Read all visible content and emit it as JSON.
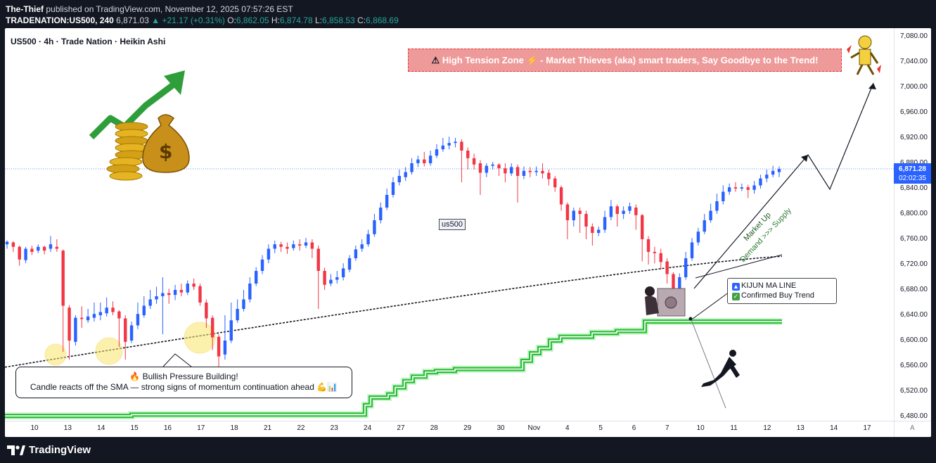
{
  "header": {
    "publisher": "The-Thief",
    "published_text": "published on TradingView.com, November 12, 2025 07:57:26 EST",
    "symbol": "TRADENATION:US500, 240",
    "last": "6,871.03",
    "change": "▲ +21.17 (+0.31%)",
    "o_label": "O:",
    "o_value": "6,862.05",
    "h_label": "H:",
    "h_value": "6,874.78",
    "l_label": "L:",
    "l_value": "6,858.53",
    "c_label": "C:",
    "c_value": "6,868.69"
  },
  "chart_title": "US500 · 4h · Trade Nation · Heikin Ashi",
  "banner": {
    "icon": "⚠",
    "text": "High Tension Zone ⚡ - Market Thieves (aka) smart traders, Say Goodbye to the Trend!"
  },
  "labels": {
    "us500": "us500",
    "kijun_line": "KIJUN MA LINE",
    "confirmed": "Confirmed Buy Trend",
    "market_up": "Market Up",
    "demand_supply": "Demand >>> Supply",
    "bull_line1": "🔥 Bullish Pressure Building!",
    "bull_line2": "Candle reacts off the SMA — strong signs of momentum continuation ahead 💪📊"
  },
  "price_tag": {
    "price": "6,871.28",
    "countdown": "02:02:35"
  },
  "auto_label": "A",
  "footer_logo": "TradingView",
  "icons": [
    "green-arrow-icon",
    "money-bag-icon",
    "gold-coins-icon",
    "thief-with-safe-icon",
    "climber-silhouette-icon",
    "robot-thief-icon"
  ],
  "colors": {
    "up": "#2962ff",
    "down": "#f23645",
    "kijun": "#2ebd3a",
    "sma": "#131722",
    "banner_bg": "#ef9a9a",
    "price_tag": "#2962ff"
  },
  "chart_data": {
    "type": "candlestick",
    "title": "US500 · 4h · Trade Nation · Heikin Ashi",
    "y_ticks": [
      "7,080.00",
      "7,040.00",
      "7,000.00",
      "6,960.00",
      "6,920.00",
      "6,880.00",
      "6,840.00",
      "6,800.00",
      "6,760.00",
      "6,720.00",
      "6,680.00",
      "6,640.00",
      "6,600.00",
      "6,560.00",
      "6,520.00",
      "6,480.00"
    ],
    "ylim": [
      6460,
      7100
    ],
    "x_ticks": [
      "10",
      "13",
      "14",
      "15",
      "16",
      "17",
      "18",
      "21",
      "22",
      "23",
      "24",
      "27",
      "28",
      "29",
      "30",
      "Nov",
      "4",
      "5",
      "6",
      "7",
      "10",
      "11",
      "12",
      "13",
      "14",
      "17"
    ],
    "last_price": 6871.28,
    "candles": [
      [
        6752,
        6756,
        6745,
        6758
      ],
      [
        6755,
        6748,
        6740,
        6757
      ],
      [
        6748,
        6728,
        6718,
        6750
      ],
      [
        6727,
        6745,
        6722,
        6748
      ],
      [
        6745,
        6740,
        6735,
        6750
      ],
      [
        6742,
        6748,
        6738,
        6752
      ],
      [
        6748,
        6742,
        6736,
        6750
      ],
      [
        6745,
        6752,
        6740,
        6765
      ],
      [
        6748,
        6745,
        6740,
        6760
      ],
      [
        6742,
        6655,
        6582,
        6744
      ],
      [
        6652,
        6600,
        6570,
        6656
      ],
      [
        6598,
        6636,
        6592,
        6640
      ],
      [
        6636,
        6634,
        6620,
        6654
      ],
      [
        6632,
        6638,
        6628,
        6650
      ],
      [
        6636,
        6642,
        6630,
        6660
      ],
      [
        6640,
        6645,
        6632,
        6660
      ],
      [
        6643,
        6652,
        6638,
        6668
      ],
      [
        6652,
        6645,
        6640,
        6662
      ],
      [
        6646,
        6635,
        6590,
        6648
      ],
      [
        6635,
        6598,
        6570,
        6640
      ],
      [
        6600,
        6624,
        6596,
        6630
      ],
      [
        6624,
        6642,
        6618,
        6660
      ],
      [
        6640,
        6655,
        6636,
        6670
      ],
      [
        6655,
        6665,
        6650,
        6680
      ],
      [
        6665,
        6670,
        6658,
        6685
      ],
      [
        6670,
        6675,
        6610,
        6700
      ],
      [
        6675,
        6672,
        6658,
        6682
      ],
      [
        6672,
        6680,
        6664,
        6688
      ],
      [
        6680,
        6676,
        6670,
        6690
      ],
      [
        6676,
        6690,
        6672,
        6695
      ],
      [
        6690,
        6685,
        6680,
        6698
      ],
      [
        6686,
        6660,
        6655,
        6690
      ],
      [
        6660,
        6635,
        6620,
        6665
      ],
      [
        6636,
        6605,
        6585,
        6640
      ],
      [
        6606,
        6575,
        6555,
        6610
      ],
      [
        6578,
        6600,
        6570,
        6640
      ],
      [
        6600,
        6632,
        6596,
        6660
      ],
      [
        6632,
        6650,
        6628,
        6665
      ],
      [
        6650,
        6665,
        6646,
        6680
      ],
      [
        6665,
        6690,
        6660,
        6700
      ],
      [
        6690,
        6710,
        6686,
        6716
      ],
      [
        6710,
        6728,
        6705,
        6735
      ],
      [
        6728,
        6745,
        6722,
        6752
      ],
      [
        6745,
        6752,
        6738,
        6758
      ],
      [
        6752,
        6748,
        6740,
        6756
      ],
      [
        6748,
        6745,
        6737,
        6755
      ],
      [
        6746,
        6752,
        6742,
        6758
      ],
      [
        6752,
        6750,
        6742,
        6760
      ],
      [
        6750,
        6755,
        6746,
        6762
      ],
      [
        6755,
        6745,
        6730,
        6760
      ],
      [
        6745,
        6710,
        6650,
        6750
      ],
      [
        6710,
        6688,
        6680,
        6715
      ],
      [
        6690,
        6696,
        6686,
        6705
      ],
      [
        6696,
        6700,
        6690,
        6710
      ],
      [
        6700,
        6714,
        6695,
        6722
      ],
      [
        6712,
        6730,
        6708,
        6735
      ],
      [
        6730,
        6744,
        6726,
        6750
      ],
      [
        6745,
        6752,
        6740,
        6760
      ],
      [
        6752,
        6768,
        6748,
        6775
      ],
      [
        6768,
        6790,
        6764,
        6800
      ],
      [
        6790,
        6810,
        6785,
        6818
      ],
      [
        6810,
        6830,
        6806,
        6840
      ],
      [
        6830,
        6850,
        6826,
        6858
      ],
      [
        6850,
        6860,
        6845,
        6870
      ],
      [
        6858,
        6866,
        6852,
        6874
      ],
      [
        6866,
        6880,
        6862,
        6888
      ],
      [
        6880,
        6886,
        6874,
        6892
      ],
      [
        6886,
        6880,
        6875,
        6898
      ],
      [
        6880,
        6892,
        6876,
        6900
      ],
      [
        6892,
        6902,
        6888,
        6910
      ],
      [
        6902,
        6908,
        6898,
        6920
      ],
      [
        6908,
        6912,
        6902,
        6922
      ],
      [
        6912,
        6914,
        6905,
        6920
      ],
      [
        6914,
        6900,
        6850,
        6918
      ],
      [
        6900,
        6888,
        6870,
        6905
      ],
      [
        6888,
        6878,
        6870,
        6895
      ],
      [
        6880,
        6865,
        6830,
        6885
      ],
      [
        6865,
        6876,
        6858,
        6880
      ],
      [
        6876,
        6878,
        6870,
        6882
      ],
      [
        6878,
        6872,
        6860,
        6880
      ],
      [
        6872,
        6864,
        6850,
        6880
      ],
      [
        6864,
        6874,
        6860,
        6880
      ],
      [
        6874,
        6860,
        6818,
        6878
      ],
      [
        6860,
        6868,
        6855,
        6875
      ],
      [
        6868,
        6866,
        6858,
        6874
      ],
      [
        6866,
        6868,
        6860,
        6875
      ],
      [
        6868,
        6864,
        6856,
        6880
      ],
      [
        6865,
        6855,
        6845,
        6870
      ],
      [
        6856,
        6842,
        6835,
        6860
      ],
      [
        6842,
        6815,
        6805,
        6845
      ],
      [
        6815,
        6790,
        6760,
        6818
      ],
      [
        6790,
        6805,
        6780,
        6810
      ],
      [
        6805,
        6800,
        6770,
        6810
      ],
      [
        6800,
        6780,
        6760,
        6805
      ],
      [
        6780,
        6770,
        6750,
        6785
      ],
      [
        6770,
        6775,
        6765,
        6780
      ],
      [
        6775,
        6795,
        6770,
        6805
      ],
      [
        6795,
        6812,
        6790,
        6822
      ],
      [
        6812,
        6800,
        6780,
        6815
      ],
      [
        6800,
        6805,
        6792,
        6812
      ],
      [
        6805,
        6812,
        6800,
        6818
      ],
      [
        6810,
        6798,
        6775,
        6815
      ],
      [
        6798,
        6760,
        6725,
        6800
      ],
      [
        6760,
        6740,
        6720,
        6765
      ],
      [
        6740,
        6738,
        6722,
        6748
      ],
      [
        6738,
        6724,
        6712,
        6745
      ],
      [
        6725,
        6705,
        6690,
        6730
      ],
      [
        6705,
        6672,
        6640,
        6708
      ],
      [
        6675,
        6700,
        6670,
        6706
      ],
      [
        6700,
        6730,
        6696,
        6740
      ],
      [
        6730,
        6755,
        6726,
        6762
      ],
      [
        6755,
        6772,
        6750,
        6778
      ],
      [
        6772,
        6790,
        6768,
        6800
      ],
      [
        6790,
        6805,
        6786,
        6816
      ],
      [
        6805,
        6820,
        6800,
        6832
      ],
      [
        6820,
        6835,
        6815,
        6845
      ],
      [
        6835,
        6842,
        6830,
        6848
      ],
      [
        6842,
        6840,
        6835,
        6850
      ],
      [
        6840,
        6842,
        6836,
        6848
      ],
      [
        6842,
        6838,
        6825,
        6846
      ],
      [
        6838,
        6845,
        6832,
        6852
      ],
      [
        6845,
        6856,
        6840,
        6862
      ],
      [
        6856,
        6862,
        6850,
        6870
      ],
      [
        6862,
        6868,
        6858,
        6876
      ],
      [
        6866,
        6871,
        6858,
        6875
      ]
    ],
    "sma_series": "long moving average (dashed black) rising from ~6560 to ~6730",
    "kijun_series": "step line (green) from ~6480 to ~6630",
    "projection": [
      [
        6871,
        "now"
      ],
      [
        6890,
        "13"
      ],
      [
        6840,
        "14"
      ],
      [
        7010,
        "15"
      ]
    ]
  }
}
